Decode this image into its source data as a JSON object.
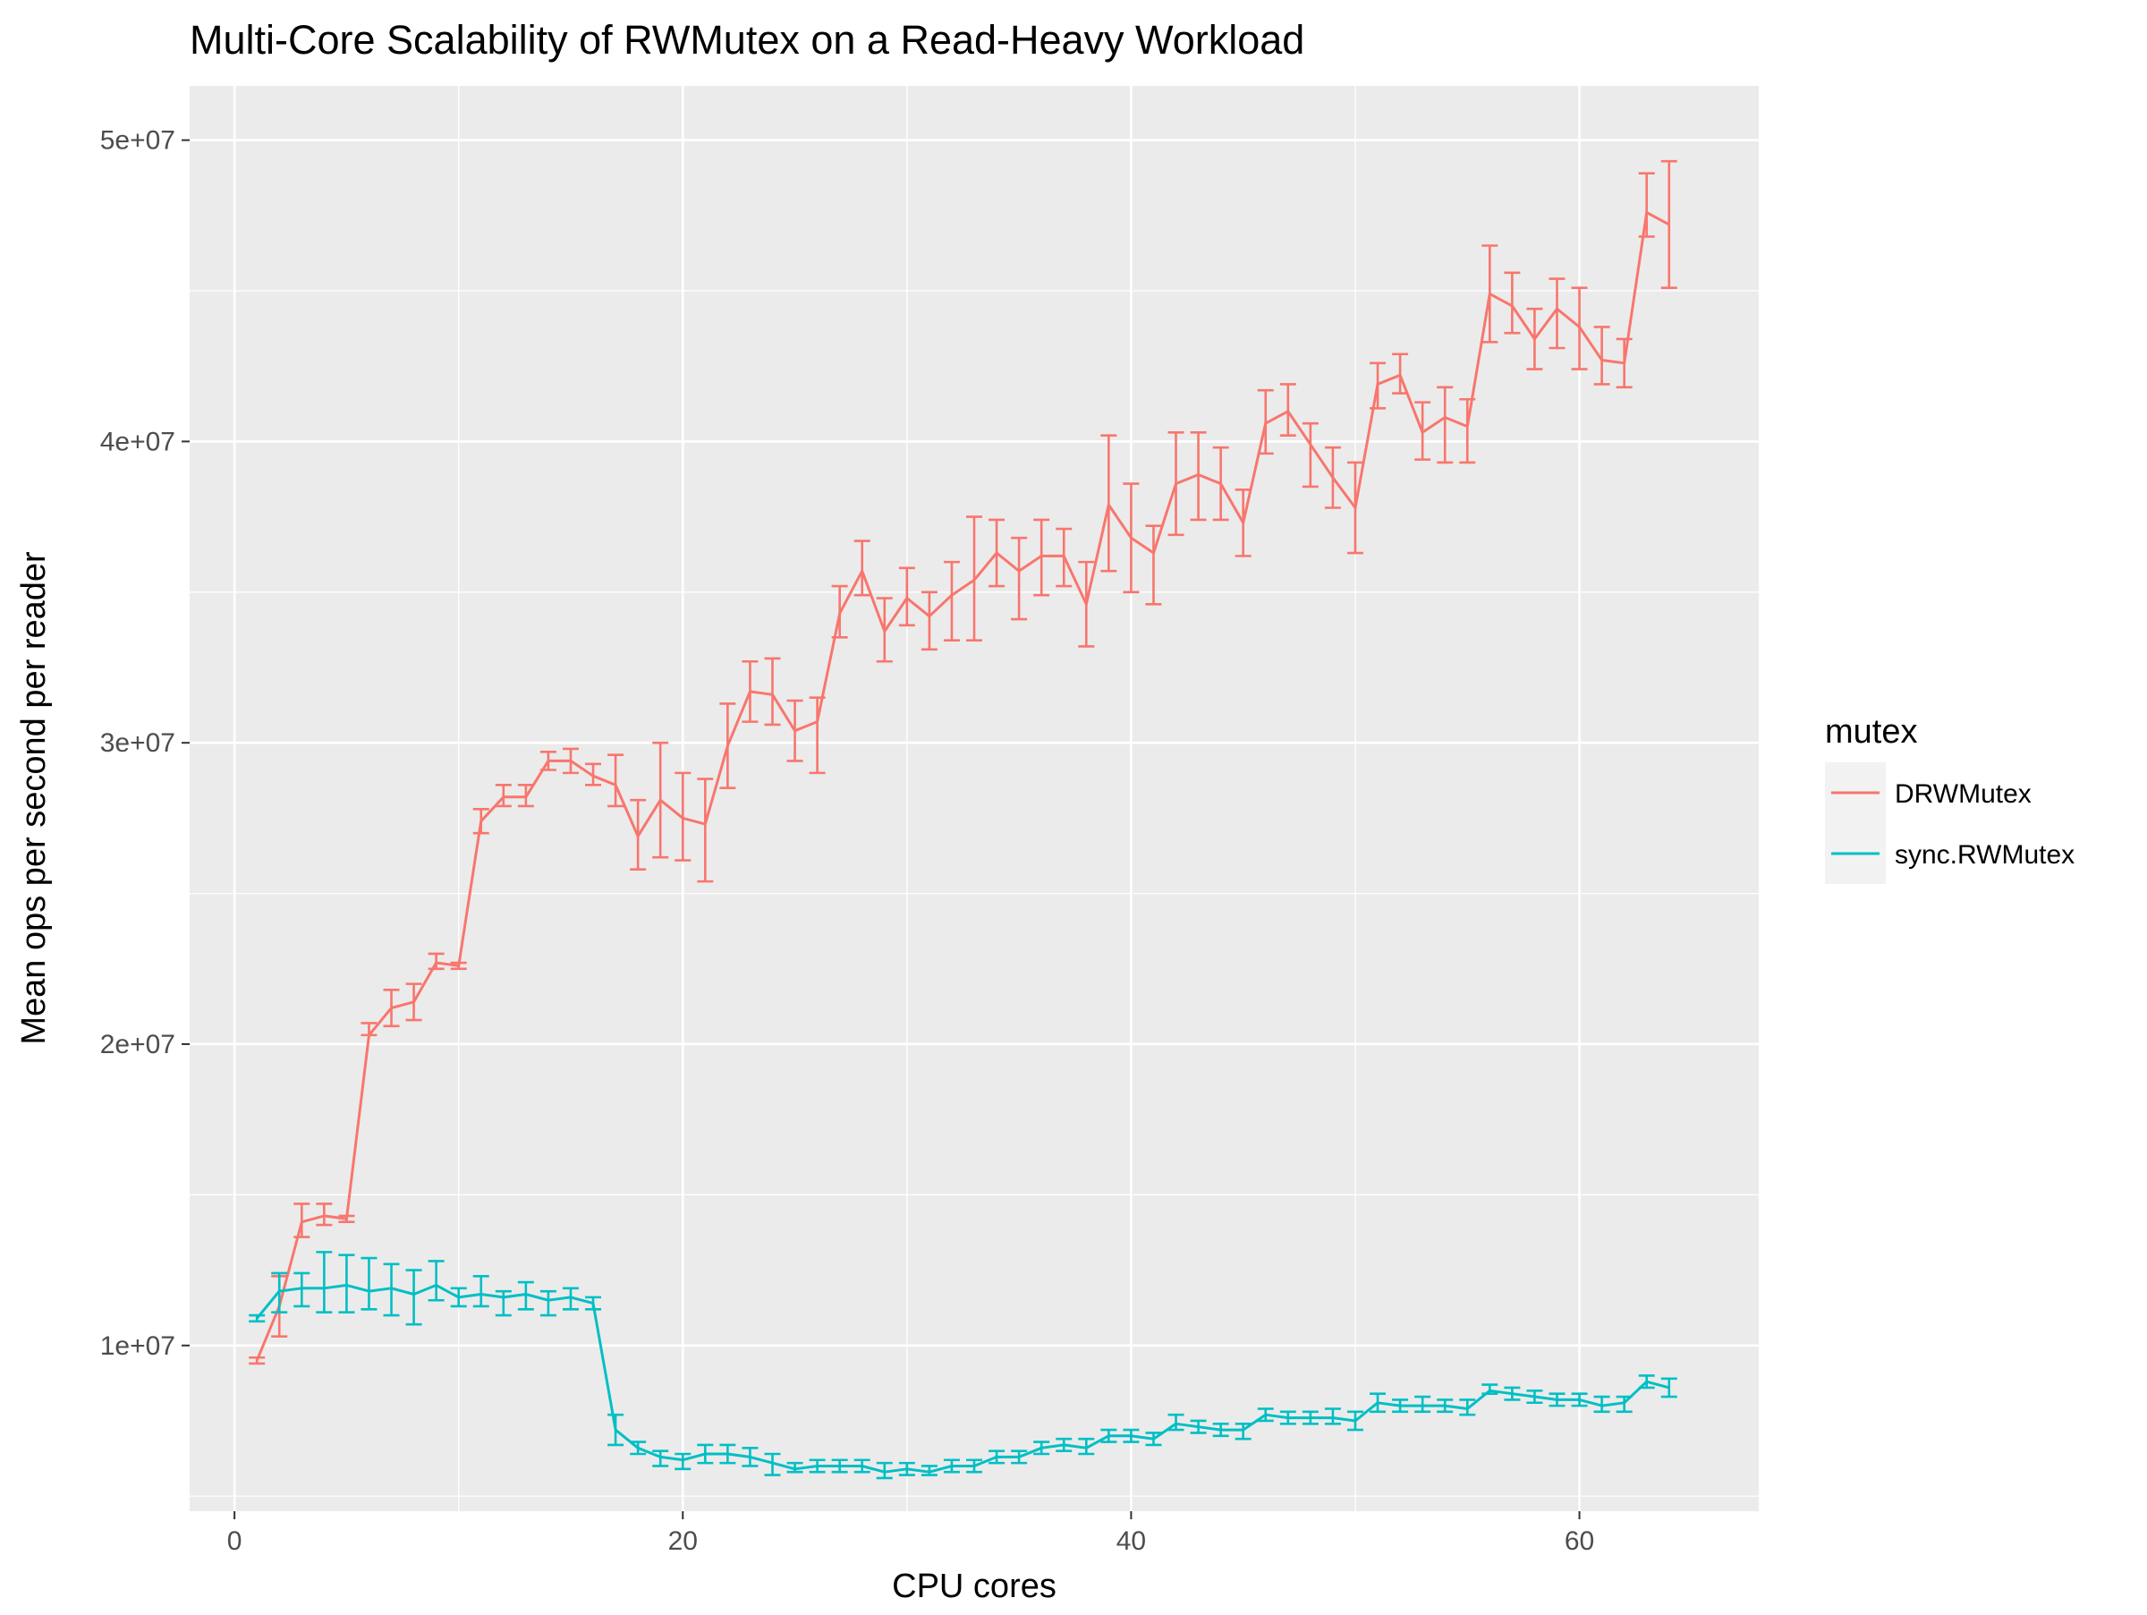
{
  "chart_data": {
    "type": "line",
    "title": "Multi-Core Scalability of RWMutex on a Read-Heavy Workload",
    "xlabel": "CPU cores",
    "ylabel": "Mean ops per second per reader",
    "xlim": [
      -2,
      68
    ],
    "ylim": [
      4500000,
      51800000
    ],
    "x_ticks": [
      0,
      20,
      40,
      60
    ],
    "x_tick_labels": [
      "0",
      "20",
      "40",
      "60"
    ],
    "y_ticks": [
      10000000,
      20000000,
      30000000,
      40000000,
      50000000
    ],
    "y_tick_labels": [
      "1e+07",
      "2e+07",
      "3e+07",
      "4e+07",
      "5e+07"
    ],
    "grid": true,
    "legend": {
      "title": "mutex",
      "position": "right"
    },
    "series": [
      {
        "name": "DRWMutex",
        "color": "#F8766D",
        "x": [
          1,
          2,
          3,
          4,
          5,
          6,
          7,
          8,
          9,
          10,
          11,
          12,
          13,
          14,
          15,
          16,
          17,
          18,
          19,
          20,
          21,
          22,
          23,
          24,
          25,
          26,
          27,
          28,
          29,
          30,
          31,
          32,
          33,
          34,
          35,
          36,
          37,
          38,
          39,
          40,
          41,
          42,
          43,
          44,
          45,
          46,
          47,
          48,
          49,
          50,
          51,
          52,
          53,
          54,
          55,
          56,
          57,
          58,
          59,
          60,
          61,
          62,
          63,
          64
        ],
        "y": [
          9500000,
          11300000,
          14100000,
          14300000,
          14200000,
          20300000,
          21200000,
          21400000,
          22700000,
          22600000,
          27400000,
          28200000,
          28200000,
          29400000,
          29400000,
          28900000,
          28600000,
          26900000,
          28100000,
          27500000,
          27300000,
          29900000,
          31700000,
          31600000,
          30400000,
          30700000,
          34300000,
          35700000,
          33700000,
          34800000,
          34200000,
          34900000,
          35400000,
          36300000,
          35700000,
          36200000,
          36200000,
          34600000,
          37900000,
          36800000,
          36300000,
          38600000,
          38900000,
          38600000,
          37300000,
          40600000,
          41000000,
          39900000,
          38800000,
          37800000,
          41900000,
          42200000,
          40300000,
          40800000,
          40500000,
          44900000,
          44500000,
          43400000,
          44400000,
          43800000,
          42700000,
          42600000,
          47600000,
          47200000
        ],
        "ymin": [
          9400000,
          10300000,
          13600000,
          14000000,
          14100000,
          20300000,
          20600000,
          20800000,
          22500000,
          22500000,
          27000000,
          27900000,
          27900000,
          29100000,
          29000000,
          28600000,
          27900000,
          25800000,
          26200000,
          26100000,
          25400000,
          28500000,
          30700000,
          30600000,
          29400000,
          29000000,
          33500000,
          34900000,
          32700000,
          33900000,
          33100000,
          33400000,
          33400000,
          35200000,
          34100000,
          34900000,
          35200000,
          33200000,
          35700000,
          35000000,
          34600000,
          36900000,
          37400000,
          37400000,
          36200000,
          39600000,
          40200000,
          38500000,
          37800000,
          36300000,
          41100000,
          41600000,
          39400000,
          39300000,
          39300000,
          43300000,
          43600000,
          42400000,
          43100000,
          42400000,
          41900000,
          41800000,
          46800000,
          45100000
        ],
        "ymax": [
          9600000,
          12300000,
          14700000,
          14700000,
          14300000,
          20700000,
          21800000,
          22000000,
          23000000,
          22700000,
          27800000,
          28600000,
          28600000,
          29700000,
          29800000,
          29300000,
          29600000,
          28100000,
          30000000,
          29000000,
          28800000,
          31300000,
          32700000,
          32800000,
          31400000,
          31500000,
          35200000,
          36700000,
          34800000,
          35800000,
          35000000,
          36000000,
          37500000,
          37400000,
          36800000,
          37400000,
          37100000,
          36000000,
          40200000,
          38600000,
          37200000,
          40300000,
          40300000,
          39800000,
          38400000,
          41700000,
          41900000,
          40600000,
          39800000,
          39300000,
          42600000,
          42900000,
          41300000,
          41800000,
          41400000,
          46500000,
          45600000,
          44400000,
          45400000,
          45100000,
          43800000,
          43400000,
          48900000,
          49300000
        ]
      },
      {
        "name": "sync.RWMutex",
        "color": "#00BFC4",
        "x": [
          1,
          2,
          3,
          4,
          5,
          6,
          7,
          8,
          9,
          10,
          11,
          12,
          13,
          14,
          15,
          16,
          17,
          18,
          19,
          20,
          21,
          22,
          23,
          24,
          25,
          26,
          27,
          28,
          29,
          30,
          31,
          32,
          33,
          34,
          35,
          36,
          37,
          38,
          39,
          40,
          41,
          42,
          43,
          44,
          45,
          46,
          47,
          48,
          49,
          50,
          51,
          52,
          53,
          54,
          55,
          56,
          57,
          58,
          59,
          60,
          61,
          62,
          63,
          64
        ],
        "y": [
          10900000,
          11800000,
          11900000,
          11900000,
          12000000,
          11800000,
          11900000,
          11700000,
          12000000,
          11600000,
          11700000,
          11600000,
          11700000,
          11500000,
          11600000,
          11400000,
          7200000,
          6600000,
          6300000,
          6200000,
          6400000,
          6400000,
          6300000,
          6100000,
          5900000,
          6000000,
          6000000,
          6000000,
          5800000,
          5900000,
          5800000,
          6000000,
          6000000,
          6300000,
          6300000,
          6600000,
          6700000,
          6600000,
          7000000,
          7000000,
          6900000,
          7400000,
          7300000,
          7200000,
          7200000,
          7700000,
          7600000,
          7600000,
          7600000,
          7500000,
          8100000,
          8000000,
          8000000,
          8000000,
          7900000,
          8500000,
          8400000,
          8300000,
          8200000,
          8200000,
          8000000,
          8100000,
          8800000,
          8600000
        ],
        "ymin": [
          10800000,
          11100000,
          11300000,
          11100000,
          11100000,
          11200000,
          11000000,
          10700000,
          11500000,
          11300000,
          11300000,
          11000000,
          11200000,
          11000000,
          11200000,
          11200000,
          6700000,
          6400000,
          6000000,
          5900000,
          6100000,
          6100000,
          6000000,
          5700000,
          5800000,
          5800000,
          5800000,
          5800000,
          5600000,
          5700000,
          5700000,
          5800000,
          5800000,
          6100000,
          6100000,
          6400000,
          6500000,
          6400000,
          6800000,
          6800000,
          6700000,
          7200000,
          7100000,
          7000000,
          6900000,
          7500000,
          7400000,
          7400000,
          7400000,
          7200000,
          7800000,
          7800000,
          7800000,
          7800000,
          7700000,
          8400000,
          8200000,
          8100000,
          8000000,
          8000000,
          7800000,
          7800000,
          8600000,
          8300000
        ],
        "ymax": [
          11000000,
          12400000,
          12400000,
          13100000,
          13000000,
          12900000,
          12700000,
          12500000,
          12800000,
          11900000,
          12300000,
          11800000,
          12100000,
          11800000,
          11900000,
          11600000,
          7700000,
          6800000,
          6500000,
          6400000,
          6700000,
          6700000,
          6600000,
          6400000,
          6100000,
          6200000,
          6200000,
          6200000,
          6100000,
          6100000,
          6000000,
          6200000,
          6200000,
          6500000,
          6500000,
          6800000,
          6900000,
          6900000,
          7200000,
          7200000,
          7100000,
          7700000,
          7500000,
          7400000,
          7400000,
          7900000,
          7800000,
          7800000,
          7900000,
          7800000,
          8400000,
          8200000,
          8300000,
          8200000,
          8200000,
          8700000,
          8600000,
          8500000,
          8400000,
          8400000,
          8300000,
          8300000,
          9000000,
          8900000
        ]
      }
    ]
  }
}
